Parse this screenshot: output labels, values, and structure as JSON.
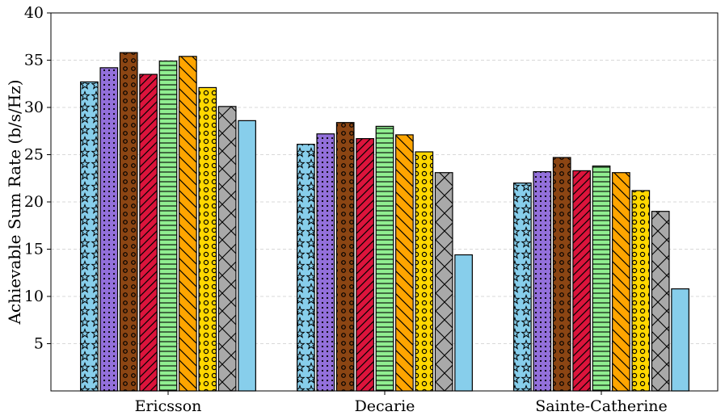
{
  "chart_data": {
    "type": "bar",
    "title": "",
    "xlabel": "",
    "ylabel": "Achievable Sum Rate (b/s/Hz)",
    "categories": [
      "Ericsson",
      "Decarie",
      "Sainte-Catherine"
    ],
    "ylim": [
      0,
      40
    ],
    "yticks": [
      5,
      10,
      15,
      20,
      25,
      30,
      35,
      40
    ],
    "grid": "horizontal dashed",
    "legend": "none",
    "series": [
      {
        "values": [
          32.7,
          26.1,
          22.0
        ],
        "color": "#87CEEB",
        "pattern": "stars"
      },
      {
        "values": [
          34.2,
          27.2,
          23.2
        ],
        "color": "#9370DB",
        "pattern": "small-dots"
      },
      {
        "values": [
          35.8,
          28.4,
          24.7
        ],
        "color": "#8B4513",
        "pattern": "circles"
      },
      {
        "values": [
          33.5,
          26.7,
          23.3
        ],
        "color": "#DC143C",
        "pattern": "diagonal-forward"
      },
      {
        "values": [
          34.9,
          28.0,
          23.8
        ],
        "color": "#90EE90",
        "pattern": "horizontal-lines"
      },
      {
        "values": [
          35.4,
          27.1,
          23.1
        ],
        "color": "#FFA500",
        "pattern": "diagonal-backward"
      },
      {
        "values": [
          32.1,
          25.3,
          21.2
        ],
        "color": "#FFD700",
        "pattern": "open-circles"
      },
      {
        "values": [
          30.1,
          23.1,
          19.0
        ],
        "color": "#A9A9A9",
        "pattern": "crosshatch"
      },
      {
        "values": [
          28.6,
          14.4,
          10.8
        ],
        "color": "#87CEEB",
        "pattern": "none"
      }
    ]
  }
}
